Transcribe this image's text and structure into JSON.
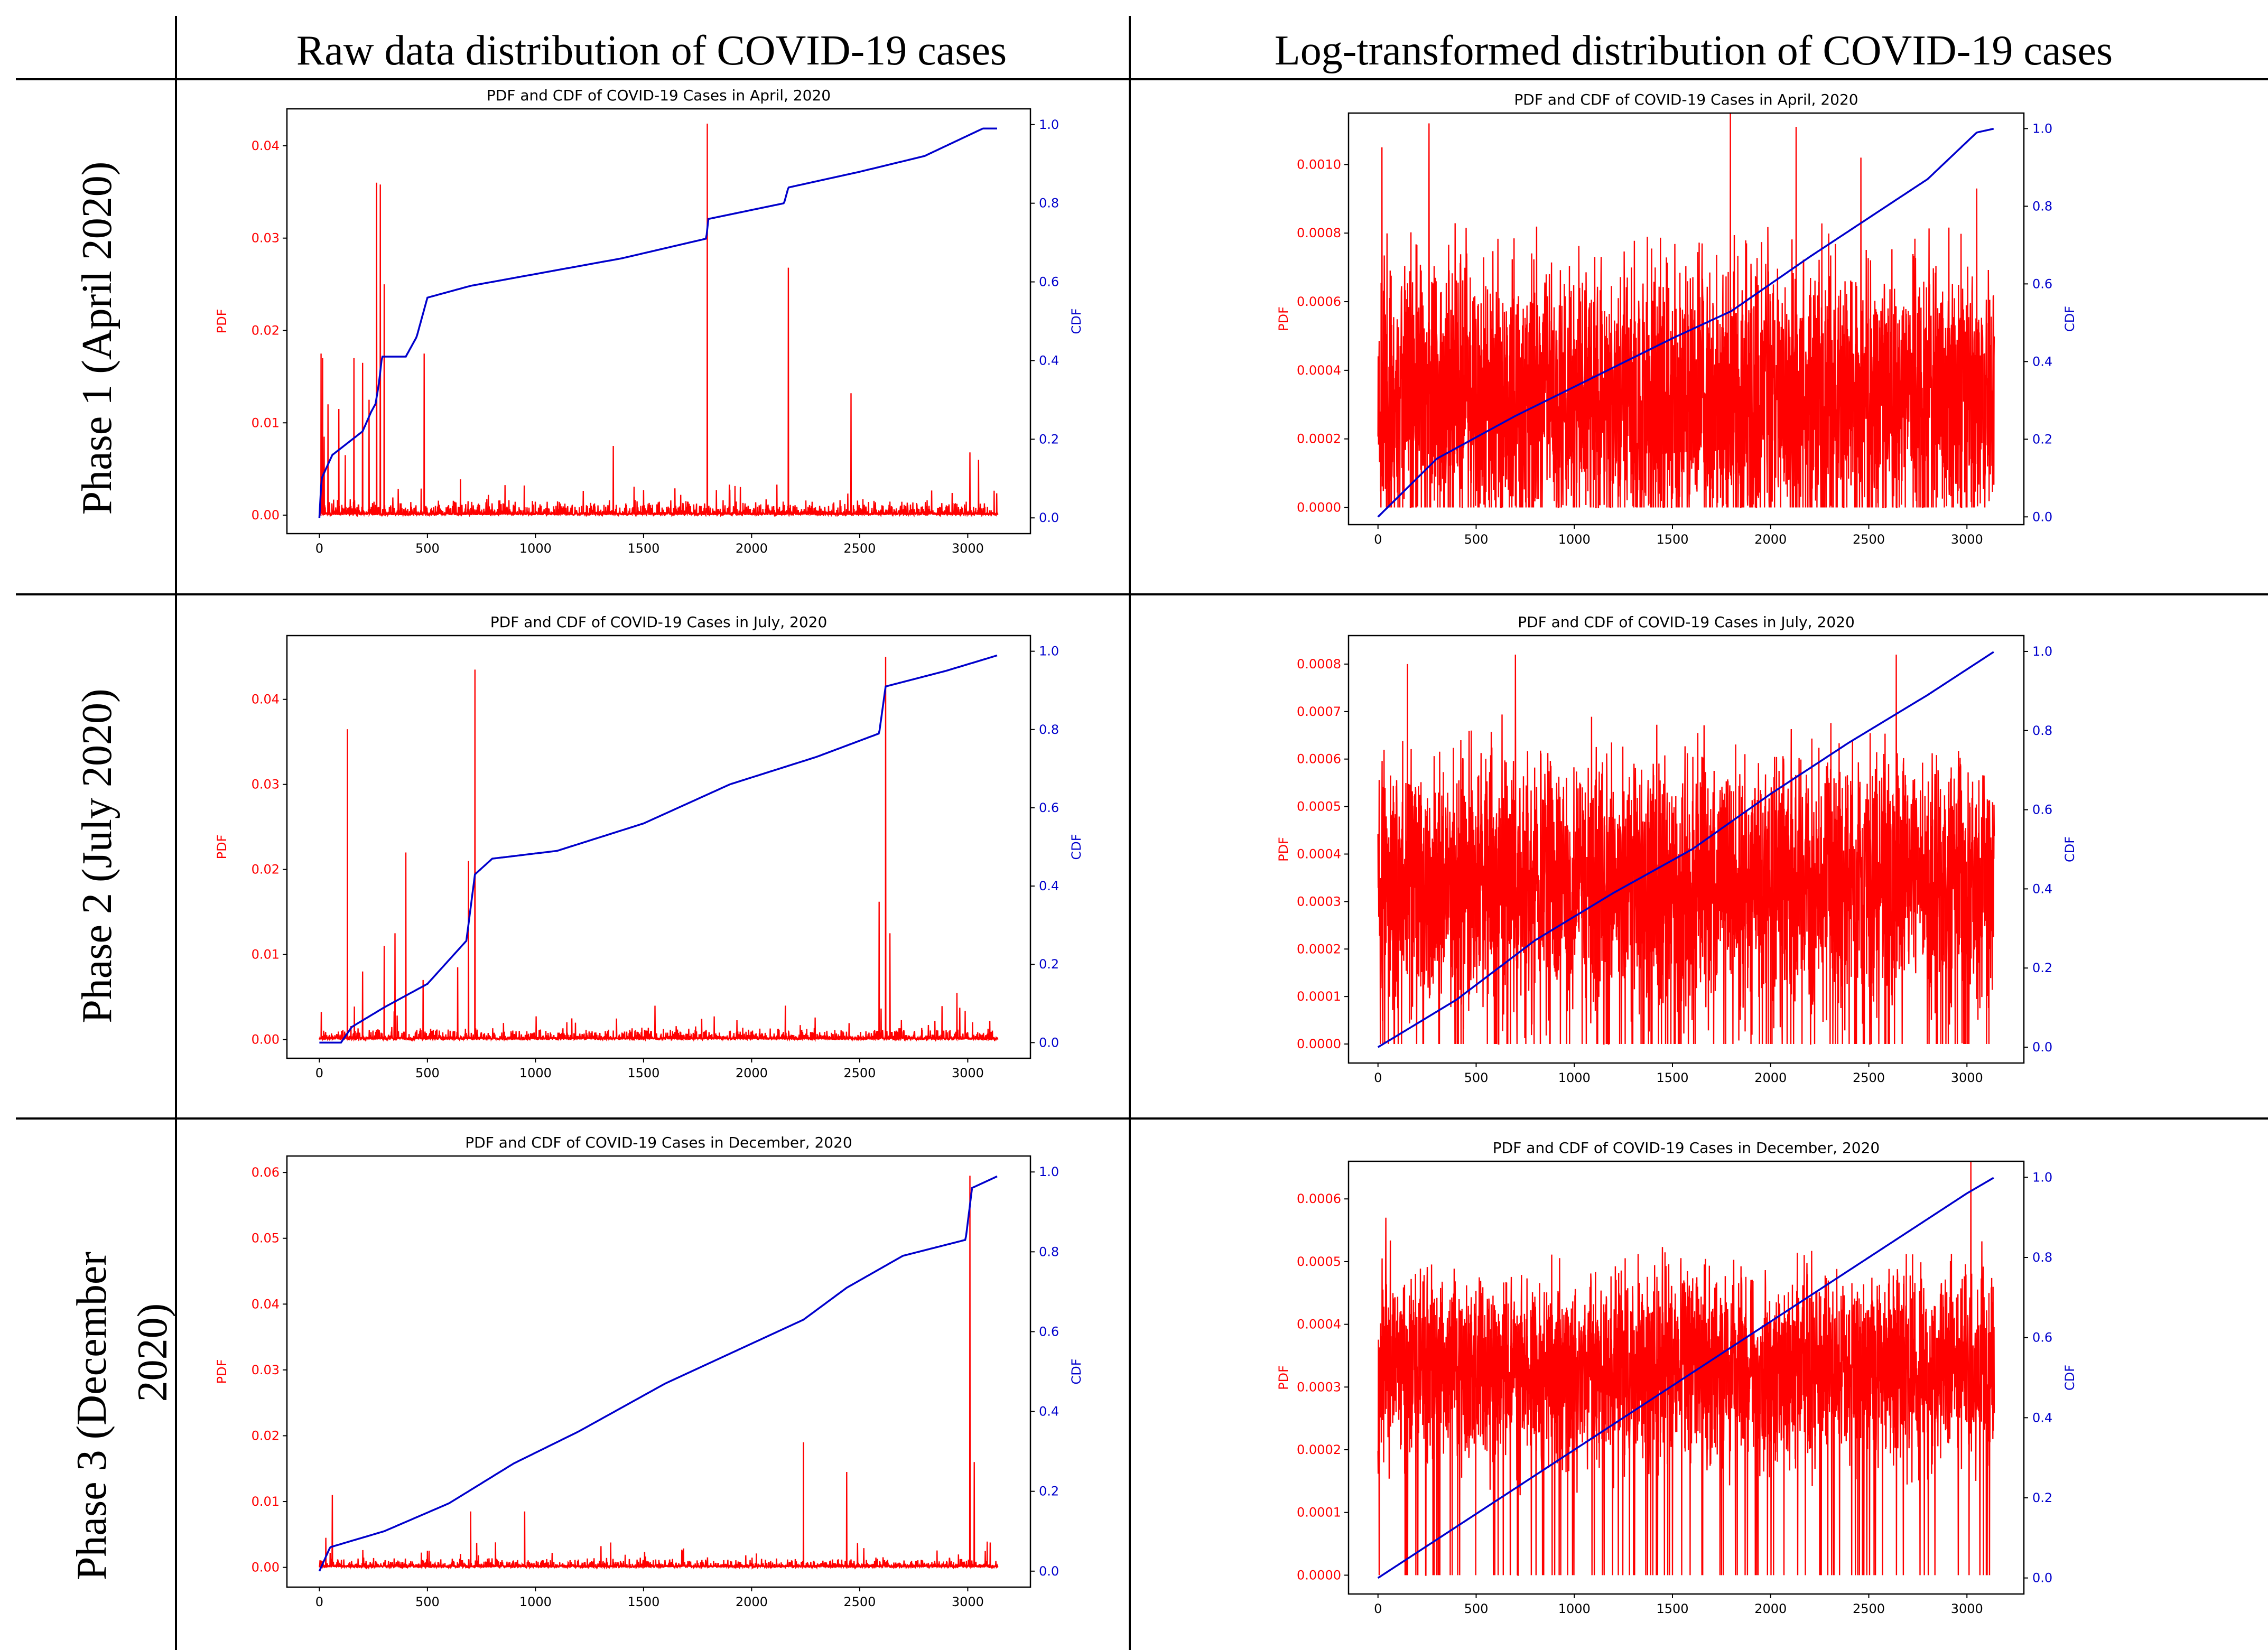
{
  "table": {
    "column_headers": [
      "Raw data distribution of COVID-19 cases",
      "Log-transformed distribution of COVID-19 cases"
    ],
    "row_labels": [
      [
        "Phase 1 (April 2020)"
      ],
      [
        "Phase 2 (July 2020)"
      ],
      [
        "Phase 3 (December",
        "2020)"
      ]
    ]
  },
  "colors": {
    "pdf": "#ff0000",
    "cdf": "#0000cc",
    "rule": "#000000"
  },
  "chart_data": [
    {
      "type": "line",
      "id": "raw-april",
      "title": "PDF and CDF of COVID-19 Cases in April, 2020",
      "xlabel": "",
      "ylabel": "PDF",
      "y2label": "CDF",
      "xlim": [
        -150,
        3290
      ],
      "ylim": [
        -0.002,
        0.044
      ],
      "y2lim": [
        -0.04,
        1.04
      ],
      "xticks": [
        0,
        500,
        1000,
        1500,
        2000,
        2500,
        3000
      ],
      "yticks": [
        "0.00",
        "0.01",
        "0.02",
        "0.03",
        "0.04"
      ],
      "y2ticks": [
        "0.0",
        "0.2",
        "0.4",
        "0.6",
        "0.8",
        "1.0"
      ],
      "pdf_gen": {
        "n": 3140,
        "mode": "raw",
        "base": 0.0007,
        "noise": 0.0018,
        "seed": 11
      },
      "pdf_spikes": [
        [
          8,
          0.0175
        ],
        [
          15,
          0.017
        ],
        [
          22,
          0.0085
        ],
        [
          40,
          0.012
        ],
        [
          90,
          0.0115
        ],
        [
          120,
          0.0065
        ],
        [
          160,
          0.017
        ],
        [
          200,
          0.0165
        ],
        [
          230,
          0.0125
        ],
        [
          265,
          0.036
        ],
        [
          282,
          0.0358
        ],
        [
          300,
          0.025
        ],
        [
          485,
          0.0175
        ],
        [
          1360,
          0.0075
        ],
        [
          1795,
          0.0424
        ],
        [
          2170,
          0.0268
        ],
        [
          2460,
          0.0132
        ],
        [
          3010,
          0.0068
        ],
        [
          3050,
          0.006
        ]
      ],
      "cdf_series": [
        [
          0,
          0.0
        ],
        [
          10,
          0.1
        ],
        [
          60,
          0.16
        ],
        [
          200,
          0.22
        ],
        [
          240,
          0.27
        ],
        [
          260,
          0.29
        ],
        [
          275,
          0.34
        ],
        [
          290,
          0.41
        ],
        [
          400,
          0.41
        ],
        [
          450,
          0.46
        ],
        [
          500,
          0.56
        ],
        [
          700,
          0.59
        ],
        [
          1000,
          0.62
        ],
        [
          1400,
          0.66
        ],
        [
          1790,
          0.71
        ],
        [
          1800,
          0.76
        ],
        [
          2150,
          0.8
        ],
        [
          2170,
          0.84
        ],
        [
          2500,
          0.88
        ],
        [
          2800,
          0.92
        ],
        [
          3070,
          0.99
        ],
        [
          3140,
          0.99
        ]
      ]
    },
    {
      "type": "line",
      "id": "log-april",
      "title": "PDF and CDF of COVID-19 Cases in April, 2020",
      "xlabel": "",
      "ylabel": "PDF",
      "y2label": "CDF",
      "xlim": [
        -150,
        3290
      ],
      "ylim": [
        -5e-05,
        0.00115
      ],
      "y2lim": [
        -0.02,
        1.04
      ],
      "xticks": [
        0,
        500,
        1000,
        1500,
        2000,
        2500,
        3000
      ],
      "yticks": [
        "0.0000",
        "0.0002",
        "0.0004",
        "0.0006",
        "0.0008",
        "0.0010"
      ],
      "y2ticks": [
        "0.0",
        "0.2",
        "0.4",
        "0.6",
        "0.8",
        "1.0"
      ],
      "pdf_gen": {
        "n": 3140,
        "mode": "log",
        "mean": 0.00033,
        "amp": 0.00045,
        "seed": 23
      },
      "pdf_spikes": [
        [
          20,
          0.00105
        ],
        [
          260,
          0.00112
        ],
        [
          1795,
          0.00115
        ],
        [
          2130,
          0.00111
        ],
        [
          2460,
          0.00102
        ],
        [
          3050,
          0.00093
        ]
      ],
      "cdf_series": [
        [
          0,
          0.0
        ],
        [
          300,
          0.15
        ],
        [
          700,
          0.26
        ],
        [
          1100,
          0.36
        ],
        [
          1500,
          0.46
        ],
        [
          1800,
          0.53
        ],
        [
          2200,
          0.67
        ],
        [
          2500,
          0.77
        ],
        [
          2800,
          0.87
        ],
        [
          3050,
          0.99
        ],
        [
          3140,
          1.0
        ]
      ]
    },
    {
      "type": "line",
      "id": "raw-july",
      "title": "PDF and CDF of COVID-19 Cases in July, 2020",
      "xlabel": "",
      "ylabel": "PDF",
      "y2label": "CDF",
      "xlim": [
        -150,
        3290
      ],
      "ylim": [
        -0.0022,
        0.0475
      ],
      "y2lim": [
        -0.04,
        1.04
      ],
      "xticks": [
        0,
        500,
        1000,
        1500,
        2000,
        2500,
        3000
      ],
      "yticks": [
        "0.00",
        "0.01",
        "0.02",
        "0.03",
        "0.04"
      ],
      "y2ticks": [
        "0.0",
        "0.2",
        "0.4",
        "0.6",
        "0.8",
        "1.0"
      ],
      "pdf_gen": {
        "n": 3140,
        "mode": "raw",
        "base": 0.0006,
        "noise": 0.0015,
        "seed": 37
      },
      "pdf_spikes": [
        [
          130,
          0.0365
        ],
        [
          200,
          0.008
        ],
        [
          300,
          0.011
        ],
        [
          350,
          0.0125
        ],
        [
          400,
          0.022
        ],
        [
          480,
          0.007
        ],
        [
          640,
          0.0085
        ],
        [
          690,
          0.021
        ],
        [
          720,
          0.0435
        ],
        [
          2590,
          0.0162
        ],
        [
          2620,
          0.045
        ],
        [
          2640,
          0.0125
        ],
        [
          2950,
          0.0055
        ]
      ],
      "cdf_series": [
        [
          0,
          0.0
        ],
        [
          100,
          0.0
        ],
        [
          150,
          0.04
        ],
        [
          300,
          0.09
        ],
        [
          500,
          0.15
        ],
        [
          680,
          0.26
        ],
        [
          720,
          0.43
        ],
        [
          800,
          0.47
        ],
        [
          1100,
          0.49
        ],
        [
          1500,
          0.56
        ],
        [
          1900,
          0.66
        ],
        [
          2300,
          0.73
        ],
        [
          2590,
          0.79
        ],
        [
          2620,
          0.91
        ],
        [
          2900,
          0.95
        ],
        [
          3140,
          0.99
        ]
      ]
    },
    {
      "type": "line",
      "id": "log-july",
      "title": "PDF and CDF of COVID-19 Cases in July, 2020",
      "xlabel": "",
      "ylabel": "PDF",
      "y2label": "CDF",
      "xlim": [
        -150,
        3290
      ],
      "ylim": [
        -4e-05,
        0.00086
      ],
      "y2lim": [
        -0.04,
        1.04
      ],
      "xticks": [
        0,
        500,
        1000,
        1500,
        2000,
        2500,
        3000
      ],
      "yticks": [
        "0.0000",
        "0.0001",
        "0.0002",
        "0.0003",
        "0.0004",
        "0.0005",
        "0.0006",
        "0.0007",
        "0.0008"
      ],
      "y2ticks": [
        "0.0",
        "0.2",
        "0.4",
        "0.6",
        "0.8",
        "1.0"
      ],
      "pdf_gen": {
        "n": 3140,
        "mode": "log",
        "mean": 0.00034,
        "amp": 0.0003,
        "seed": 51
      },
      "pdf_spikes": [
        [
          150,
          0.0008
        ],
        [
          700,
          0.00082
        ],
        [
          2640,
          0.00082
        ]
      ],
      "cdf_series": [
        [
          0,
          0.0
        ],
        [
          400,
          0.12
        ],
        [
          800,
          0.27
        ],
        [
          1200,
          0.39
        ],
        [
          1600,
          0.5
        ],
        [
          2000,
          0.64
        ],
        [
          2400,
          0.77
        ],
        [
          2800,
          0.89
        ],
        [
          3140,
          1.0
        ]
      ]
    },
    {
      "type": "line",
      "id": "raw-december",
      "title": "PDF and CDF of COVID-19 Cases in December, 2020",
      "xlabel": "",
      "ylabel": "PDF",
      "y2label": "CDF",
      "xlim": [
        -150,
        3290
      ],
      "ylim": [
        -0.003,
        0.0625
      ],
      "y2lim": [
        -0.04,
        1.04
      ],
      "xticks": [
        0,
        500,
        1000,
        1500,
        2000,
        2500,
        3000
      ],
      "yticks": [
        "0.00",
        "0.01",
        "0.02",
        "0.03",
        "0.04",
        "0.05",
        "0.06"
      ],
      "y2ticks": [
        "0.0",
        "0.2",
        "0.4",
        "0.6",
        "0.8",
        "1.0"
      ],
      "pdf_gen": {
        "n": 3140,
        "mode": "raw",
        "base": 0.0008,
        "noise": 0.0016,
        "seed": 73
      },
      "pdf_spikes": [
        [
          30,
          0.0045
        ],
        [
          60,
          0.011
        ],
        [
          700,
          0.0085
        ],
        [
          950,
          0.0085
        ],
        [
          2240,
          0.019
        ],
        [
          2440,
          0.0145
        ],
        [
          3010,
          0.0595
        ],
        [
          3030,
          0.016
        ]
      ],
      "cdf_series": [
        [
          0,
          0.0
        ],
        [
          50,
          0.06
        ],
        [
          300,
          0.1
        ],
        [
          600,
          0.17
        ],
        [
          900,
          0.27
        ],
        [
          1200,
          0.35
        ],
        [
          1600,
          0.47
        ],
        [
          2000,
          0.57
        ],
        [
          2240,
          0.63
        ],
        [
          2440,
          0.71
        ],
        [
          2700,
          0.79
        ],
        [
          2990,
          0.83
        ],
        [
          3020,
          0.96
        ],
        [
          3140,
          0.99
        ]
      ]
    },
    {
      "type": "line",
      "id": "log-december",
      "title": "PDF and CDF of COVID-19 Cases in December, 2020",
      "xlabel": "",
      "ylabel": "PDF",
      "y2label": "CDF",
      "xlim": [
        -150,
        3290
      ],
      "ylim": [
        -3e-05,
        0.00066
      ],
      "y2lim": [
        -0.04,
        1.04
      ],
      "xticks": [
        0,
        500,
        1000,
        1500,
        2000,
        2500,
        3000
      ],
      "yticks": [
        "0.0000",
        "0.0001",
        "0.0002",
        "0.0003",
        "0.0004",
        "0.0005",
        "0.0006"
      ],
      "y2ticks": [
        "0.0",
        "0.2",
        "0.4",
        "0.6",
        "0.8",
        "1.0"
      ],
      "pdf_gen": {
        "n": 3140,
        "mode": "log",
        "mean": 0.00033,
        "amp": 0.00017,
        "seed": 97
      },
      "pdf_spikes": [
        [
          40,
          0.00057
        ],
        [
          1500,
          0.0
        ],
        [
          1590,
          0.0
        ],
        [
          3020,
          0.00066
        ]
      ],
      "cdf_series": [
        [
          0,
          0.0
        ],
        [
          500,
          0.16
        ],
        [
          1000,
          0.32
        ],
        [
          1500,
          0.48
        ],
        [
          2000,
          0.64
        ],
        [
          2500,
          0.8
        ],
        [
          3000,
          0.96
        ],
        [
          3140,
          1.0
        ]
      ]
    }
  ]
}
